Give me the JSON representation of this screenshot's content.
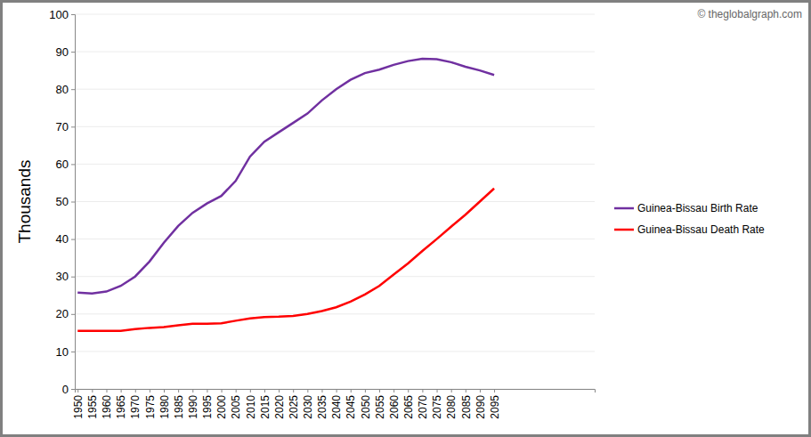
{
  "chart_data": {
    "type": "line",
    "y_label": "Thousands",
    "annotations": [
      "© theglobalgraph.com"
    ],
    "x": [
      1950,
      1955,
      1960,
      1965,
      1970,
      1975,
      1980,
      1985,
      1990,
      1995,
      2000,
      2005,
      2010,
      2015,
      2020,
      2025,
      2030,
      2035,
      2040,
      2045,
      2050,
      2055,
      2060,
      2065,
      2070,
      2075,
      2080,
      2085,
      2090,
      2095
    ],
    "series": [
      {
        "name": "Guinea-Bissau Birth Rate",
        "color": "#7030a0",
        "values": [
          25.7,
          25.5,
          26,
          27.5,
          30,
          34,
          39,
          43.5,
          47,
          49.5,
          51.5,
          55.5,
          62,
          66,
          68.5,
          71,
          73.5,
          77,
          80,
          82.5,
          84.3,
          85.2,
          86.5,
          87.5,
          88.1,
          88,
          87.2,
          86,
          85,
          83.8
        ]
      },
      {
        "name": "Guinea-Bissau Death Rate",
        "color": "#ff0000",
        "values": [
          15.5,
          15.5,
          15.5,
          15.5,
          16,
          16.3,
          16.5,
          17,
          17.4,
          17.4,
          17.5,
          18.2,
          18.8,
          19.2,
          19.3,
          19.5,
          20,
          20.8,
          21.8,
          23.3,
          25.2,
          27.5,
          30.5,
          33.5,
          36.8,
          40,
          43.3,
          46.5,
          50,
          53.5
        ]
      }
    ],
    "xlim": [
      1949,
      2130
    ],
    "xticks": [
      1950,
      1955,
      1960,
      1965,
      1970,
      1975,
      1980,
      1985,
      1990,
      1995,
      2000,
      2005,
      2010,
      2015,
      2020,
      2025,
      2030,
      2035,
      2040,
      2045,
      2050,
      2055,
      2060,
      2065,
      2070,
      2075,
      2080,
      2085,
      2090,
      2095
    ],
    "ylim": [
      0,
      100
    ],
    "yticks": [
      0,
      10,
      20,
      30,
      40,
      50,
      60,
      70,
      80,
      90,
      100
    ],
    "grid": true,
    "legend": "right"
  }
}
